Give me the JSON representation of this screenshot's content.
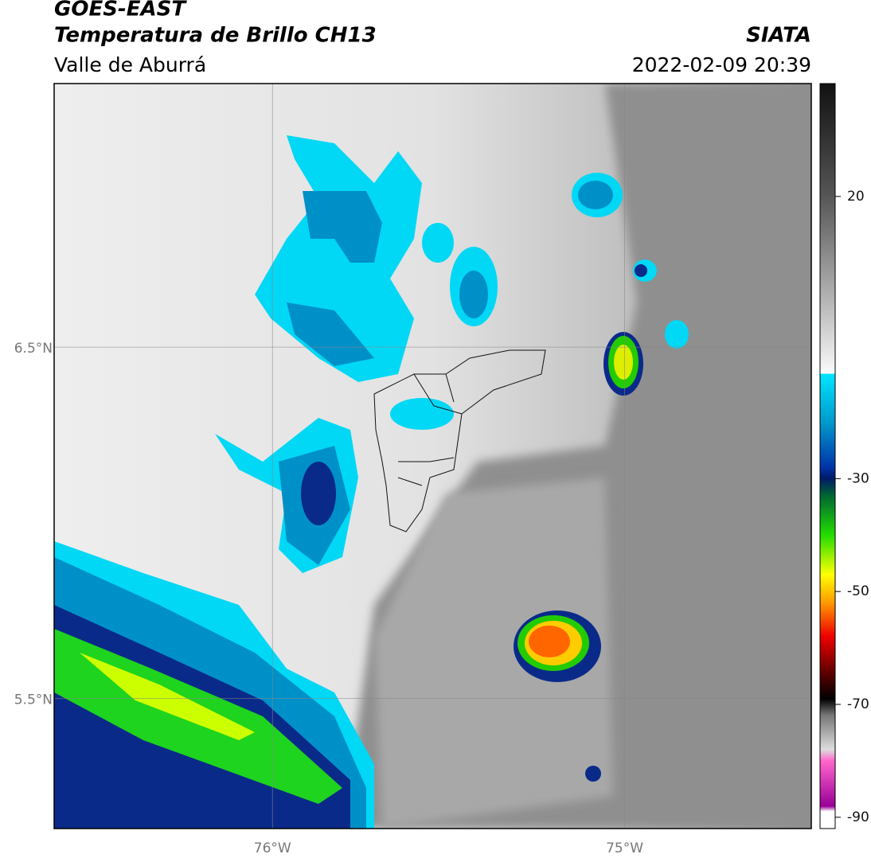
{
  "header": {
    "title": "GOES-EAST",
    "subtitle": "Temperatura de Brillo CH13",
    "region": "Valle de Aburrá",
    "source": "SIATA",
    "datetime": "2022-02-09 20:39"
  },
  "map": {
    "xlim": [
      -76.62,
      -74.47
    ],
    "ylim": [
      5.13,
      7.25
    ],
    "xticks": [
      {
        "value": -76,
        "label": "76°W"
      },
      {
        "value": -75,
        "label": "75°W"
      }
    ],
    "yticks": [
      {
        "value": 6.5,
        "label": "6.5°N"
      },
      {
        "value": 5.5,
        "label": "5.5°N"
      }
    ],
    "grid": true
  },
  "colorbar": {
    "lim": [
      -92,
      40
    ],
    "ticks": [
      20,
      -30,
      -50,
      -70,
      -90
    ]
  }
}
